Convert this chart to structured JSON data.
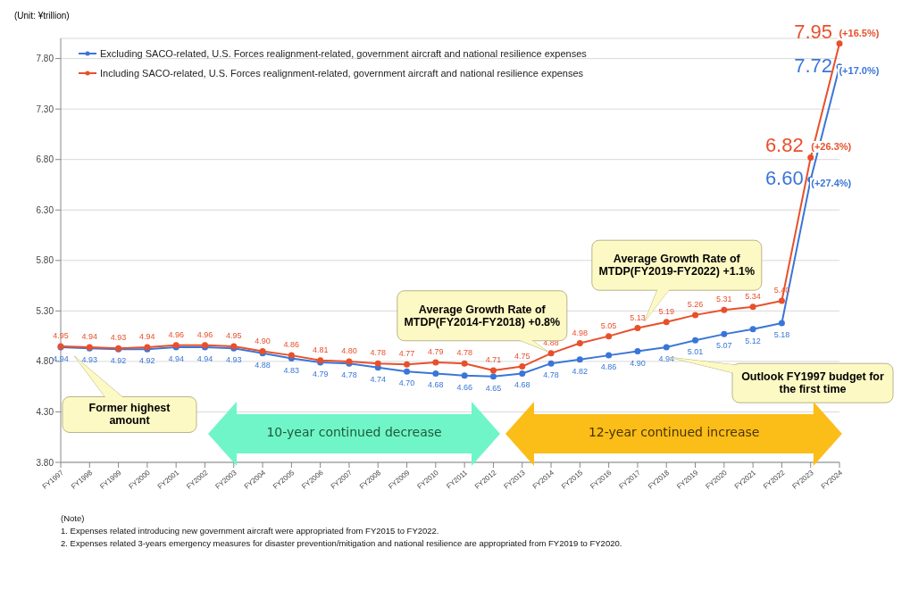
{
  "chart_data": {
    "type": "line",
    "categories": [
      "FY1997",
      "FY1998",
      "FY1999",
      "FY2000",
      "FY2001",
      "FY2002",
      "FY2003",
      "FY2004",
      "FY2005",
      "FY2006",
      "FY2007",
      "FY2008",
      "FY2009",
      "FY2010",
      "FY2011",
      "FY2012",
      "FY2013",
      "FY2014",
      "FY2015",
      "FY2016",
      "FY2017",
      "FY2018",
      "FY2019",
      "FY2020",
      "FY2021",
      "FY2022",
      "FY2023",
      "FY2024"
    ],
    "series": [
      {
        "name": "Excluding SACO-related, U.S. Forces realignment-related, government aircraft and national resilience expenses",
        "color": "#3a76d8",
        "values": [
          4.94,
          4.93,
          4.92,
          4.92,
          4.94,
          4.94,
          4.93,
          4.88,
          4.83,
          4.79,
          4.78,
          4.74,
          4.7,
          4.68,
          4.66,
          4.65,
          4.68,
          4.78,
          4.82,
          4.86,
          4.9,
          4.94,
          5.01,
          5.07,
          5.12,
          5.18,
          6.6,
          7.72
        ],
        "value_labels": [
          "4.94",
          "4.93",
          "4.92",
          "4.92",
          "4.94",
          "4.94",
          "4.93",
          "4.88",
          "4.83",
          "4.79",
          "4.78",
          "4.74",
          "4.70",
          "4.68",
          "4.66",
          "4.65",
          "4.68",
          "4.78",
          "4.82",
          "4.86",
          "4.90",
          "4.94",
          "5.01",
          "5.07",
          "5.12",
          "5.18",
          "6.60",
          "7.72"
        ]
      },
      {
        "name": "Including SACO-related, U.S. Forces realignment-related, government aircraft and national resilience expenses",
        "color": "#e8502c",
        "values": [
          4.95,
          4.94,
          4.93,
          4.94,
          4.96,
          4.96,
          4.95,
          4.9,
          4.86,
          4.81,
          4.8,
          4.78,
          4.77,
          4.79,
          4.78,
          4.71,
          4.75,
          4.88,
          4.98,
          5.05,
          5.13,
          5.19,
          5.26,
          5.31,
          5.34,
          5.4,
          6.82,
          7.95
        ],
        "value_labels": [
          "4.95",
          "4.94",
          "4.93",
          "4.94",
          "4.96",
          "4.96",
          "4.95",
          "4.90",
          "4.86",
          "4.81",
          "4.80",
          "4.78",
          "4.77",
          "4.79",
          "4.78",
          "4.71",
          "4.75",
          "4.88",
          "4.98",
          "5.05",
          "5.13",
          "5.19",
          "5.26",
          "5.31",
          "5.34",
          "5.40",
          "6.82",
          "7.95"
        ]
      }
    ],
    "ylim": [
      3.8,
      8.0
    ],
    "yticks": [
      {
        "value": 3.8,
        "label": "3.80"
      },
      {
        "value": 4.3,
        "label": "4.30"
      },
      {
        "value": 4.8,
        "label": "4.80"
      },
      {
        "value": 5.3,
        "label": "5.30"
      },
      {
        "value": 5.8,
        "label": "5.80"
      },
      {
        "value": 6.3,
        "label": "6.30"
      },
      {
        "value": 6.8,
        "label": "6.80"
      },
      {
        "value": 7.3,
        "label": "7.30"
      },
      {
        "value": 7.8,
        "label": "7.80"
      }
    ],
    "grid": "y",
    "legend": "top left",
    "marker": "circle",
    "line_style": "solid",
    "annotations": [
      "(Unit: ¥trillion)",
      "Former highest amount",
      "10-year continued decrease",
      "12-year continued increase",
      "Average Growth Rate of MTDP(FY2014-FY2018) +0.8%",
      "Average Growth Rate of MTDP(FY2019-FY2022) +1.1%",
      "Outlook FY1997 budget for the first time",
      "(Note)",
      "1. Expenses related introducing new government aircraft were appropriated from FY2015 to FY2022.",
      "2. Expenses related 3-years emergency measures for disaster prevention/mitigation and national resilience are appropriated from FY2019 to FY2020.",
      {
        "text": "(+26.3%)",
        "x": "FY2023",
        "y": 6.82
      },
      {
        "text": "(+27.4%)",
        "x": "FY2023",
        "y": 6.6
      },
      {
        "text": "(+16.5%)",
        "x": "FY2024",
        "y": 7.95
      },
      {
        "text": "(+17.0%)",
        "x": "FY2024",
        "y": 7.72
      }
    ]
  }
}
